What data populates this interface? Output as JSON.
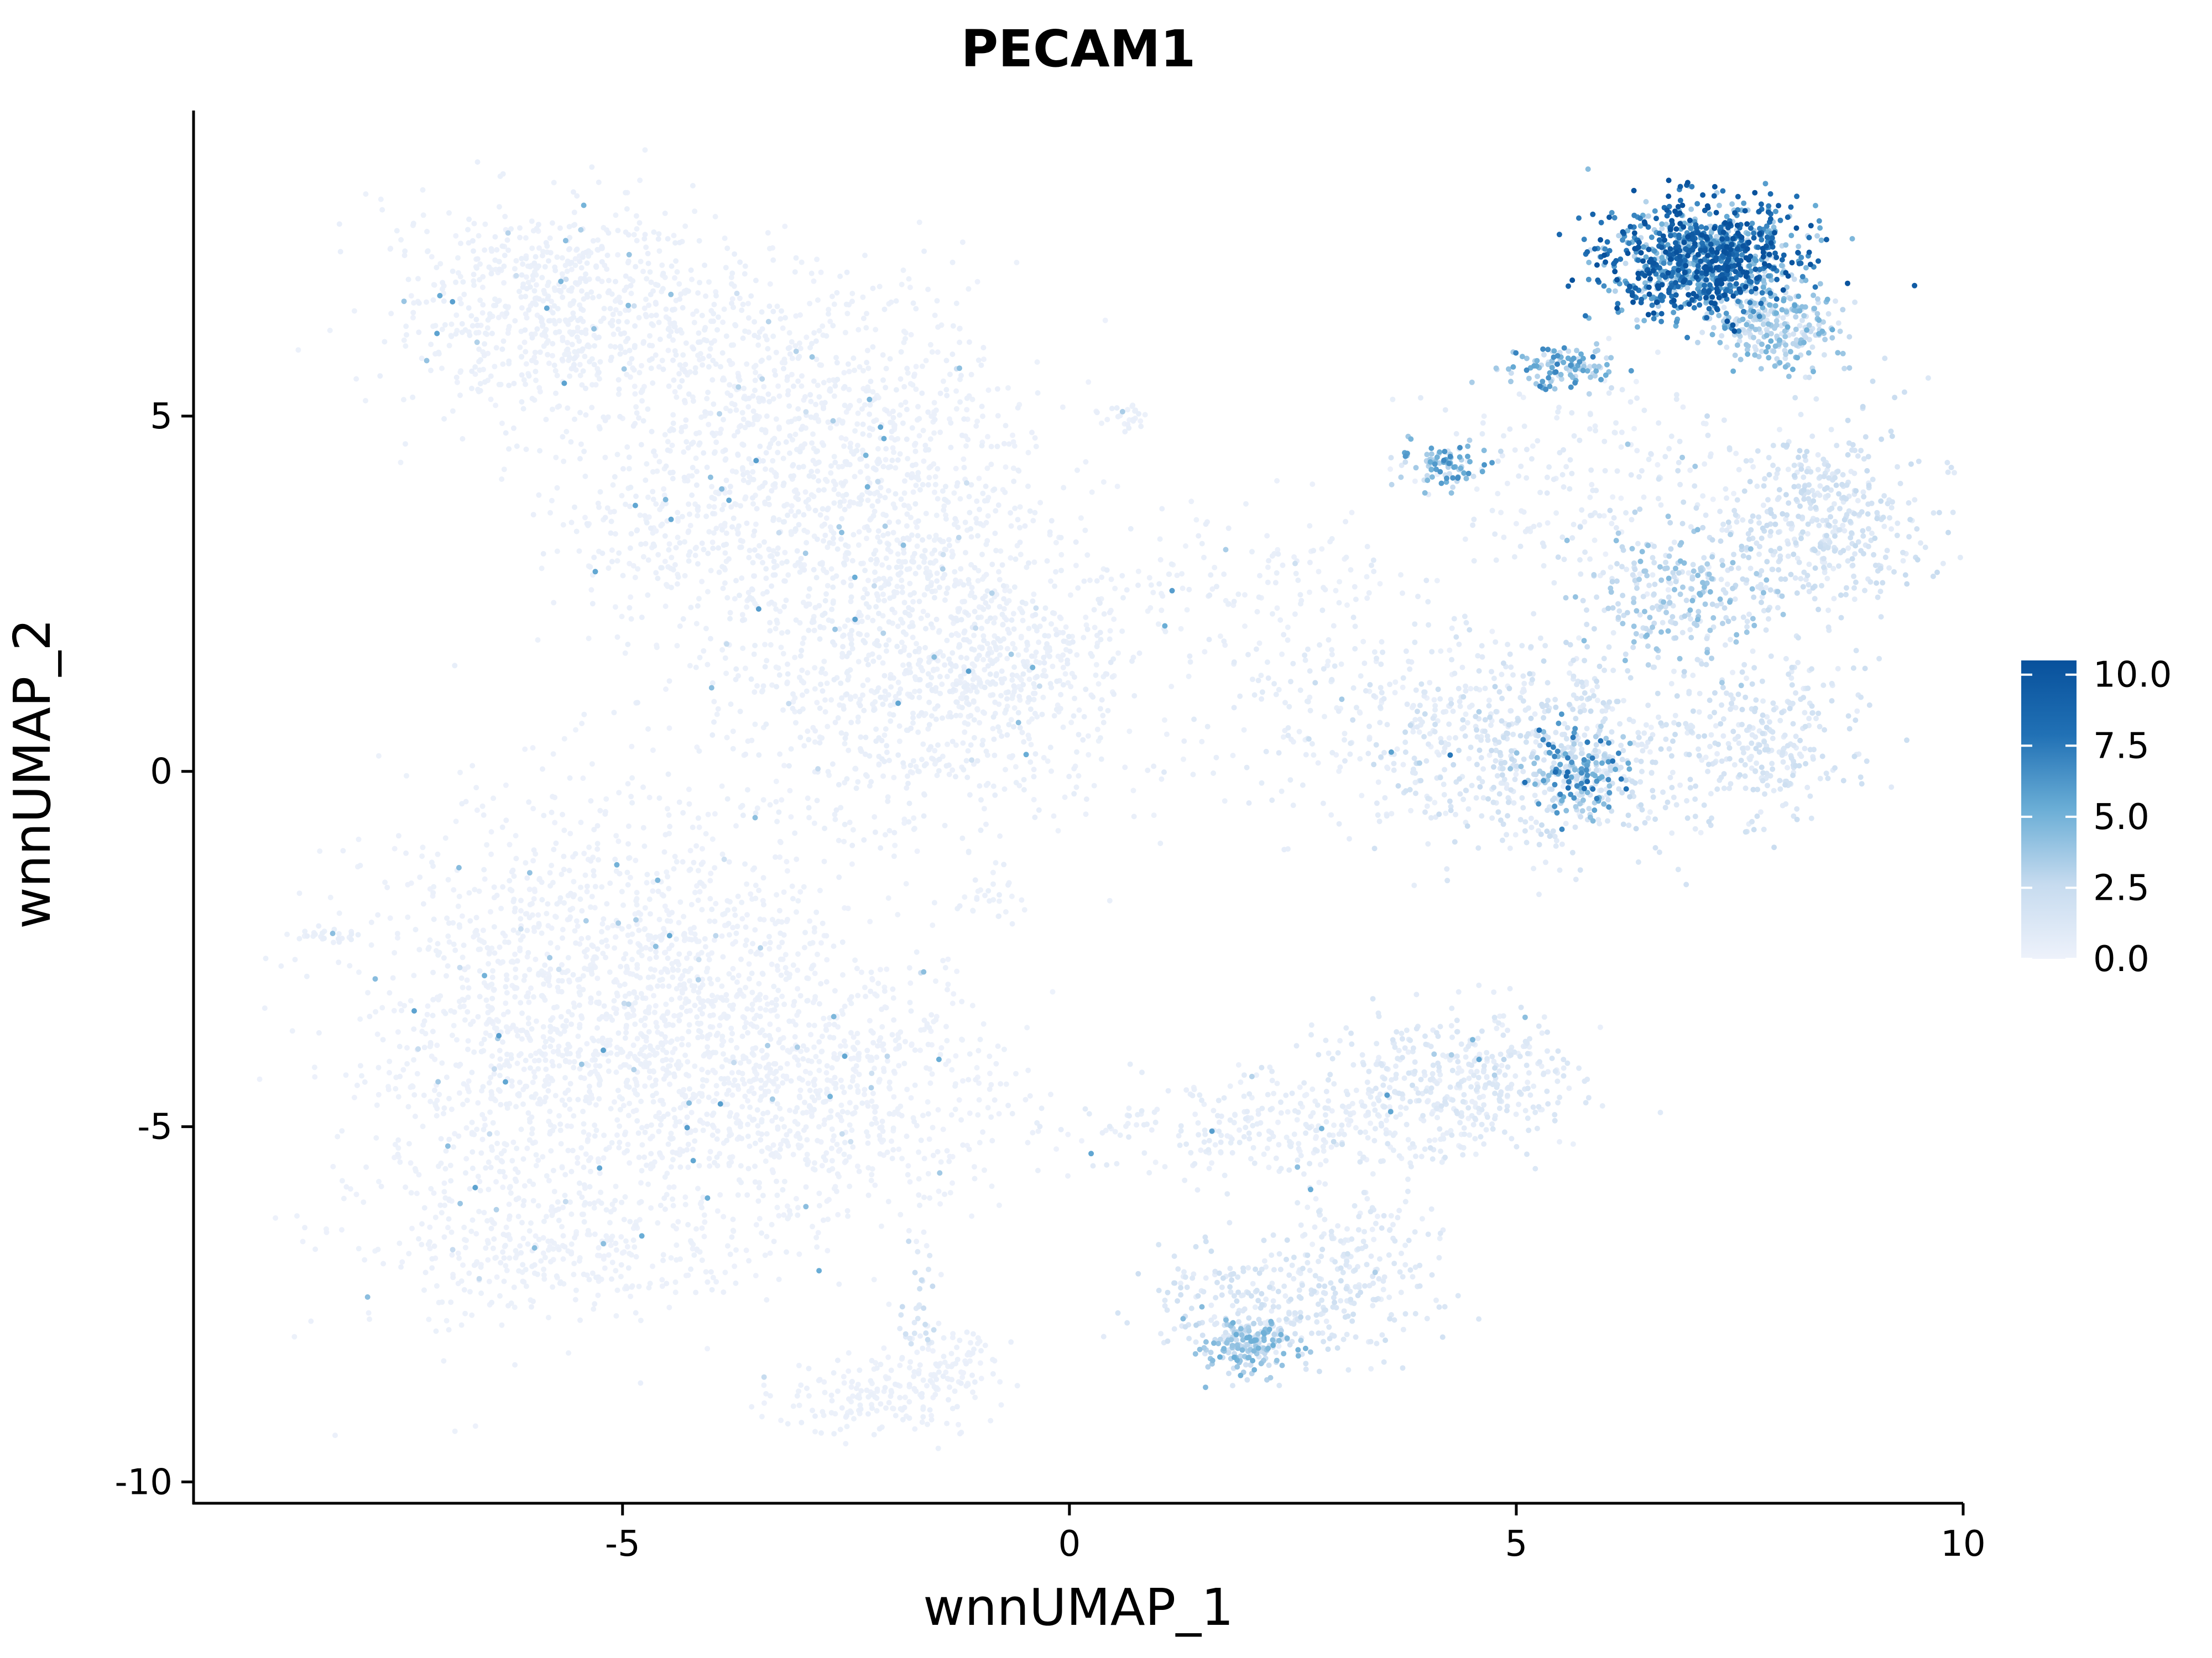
{
  "chart_data": {
    "type": "scatter",
    "title": "PECAM1",
    "xlabel": "wnnUMAP_1",
    "ylabel": "wnnUMAP_2",
    "xlim": [
      -9.8,
      10.0
    ],
    "ylim": [
      -10.3,
      9.3
    ],
    "x_ticks": [
      -5,
      0,
      5,
      10
    ],
    "y_ticks": [
      5,
      0,
      -5,
      -10
    ],
    "x_tick_labels": [
      "-5",
      "0",
      "5",
      "10"
    ],
    "y_tick_labels": [
      "5",
      "0",
      "-5",
      "-10"
    ],
    "grid": false,
    "legend": {
      "placement": "right",
      "type": "colorbar",
      "min": 0.0,
      "max": 10.5,
      "ticks": [
        0.0,
        2.5,
        5.0,
        7.5,
        10.0
      ],
      "tick_labels": [
        "0.0",
        "2.5",
        "5.0",
        "7.5",
        "10.0"
      ],
      "color_low": "#eef2fb",
      "color_high": "#08519c"
    },
    "colors": {
      "low": "#eef2fb",
      "mid": "#6baed6",
      "high": "#08519c"
    },
    "clusters": [
      {
        "cx": -5.8,
        "cy": 6.5,
        "sx": 0.9,
        "sy": 0.75,
        "n": 700,
        "mean": 0.2
      },
      {
        "cx": -3.5,
        "cy": 5.7,
        "sx": 1.2,
        "sy": 0.9,
        "n": 450,
        "mean": 0.2
      },
      {
        "cx": -2.6,
        "cy": 4.5,
        "sx": 1.2,
        "sy": 0.7,
        "n": 450,
        "mean": 0.2
      },
      {
        "cx": -2.2,
        "cy": 2.8,
        "sx": 1.2,
        "sy": 1.0,
        "n": 800,
        "mean": 0.25
      },
      {
        "cx": -1.6,
        "cy": 0.8,
        "sx": 1.1,
        "sy": 0.9,
        "n": 550,
        "mean": 0.3
      },
      {
        "cx": -0.6,
        "cy": 1.5,
        "sx": 0.7,
        "sy": 0.5,
        "n": 220,
        "mean": 0.35
      },
      {
        "cx": -4.7,
        "cy": 3.3,
        "sx": 0.6,
        "sy": 0.5,
        "n": 150,
        "mean": 0.2
      },
      {
        "cx": 0.6,
        "cy": 5.0,
        "sx": 0.15,
        "sy": 0.1,
        "n": 25,
        "mean": 0.3
      },
      {
        "cx": 2.0,
        "cy": 2.8,
        "sx": 0.8,
        "sy": 0.5,
        "n": 120,
        "mean": 0.3
      },
      {
        "cx": 3.8,
        "cy": 0.8,
        "sx": 1.2,
        "sy": 0.8,
        "n": 350,
        "mean": 0.6
      },
      {
        "cx": 5.4,
        "cy": 0.2,
        "sx": 0.9,
        "sy": 0.7,
        "n": 500,
        "mean": 1.5
      },
      {
        "cx": 5.7,
        "cy": 0.0,
        "sx": 0.3,
        "sy": 0.3,
        "n": 160,
        "mean": 5.0
      },
      {
        "cx": 7.8,
        "cy": 0.4,
        "sx": 0.5,
        "sy": 0.6,
        "n": 280,
        "mean": 1.4
      },
      {
        "cx": 8.4,
        "cy": 3.5,
        "sx": 0.6,
        "sy": 0.7,
        "n": 450,
        "mean": 1.6
      },
      {
        "cx": 6.8,
        "cy": 2.5,
        "sx": 0.55,
        "sy": 0.5,
        "n": 250,
        "mean": 2.8
      },
      {
        "cx": 7.1,
        "cy": 7.2,
        "sx": 0.55,
        "sy": 0.4,
        "n": 1000,
        "mean": 7.0
      },
      {
        "cx": 7.9,
        "cy": 6.2,
        "sx": 0.35,
        "sy": 0.3,
        "n": 250,
        "mean": 3.2
      },
      {
        "cx": 5.5,
        "cy": 5.7,
        "sx": 0.3,
        "sy": 0.15,
        "n": 110,
        "mean": 4.5
      },
      {
        "cx": 4.2,
        "cy": 4.3,
        "sx": 0.25,
        "sy": 0.15,
        "n": 90,
        "mean": 4.2
      },
      {
        "cx": 5.8,
        "cy": 4.0,
        "sx": 0.9,
        "sy": 0.8,
        "n": 200,
        "mean": 0.6
      },
      {
        "cx": -5.0,
        "cy": -3.0,
        "sx": 1.3,
        "sy": 1.4,
        "n": 1400,
        "mean": 0.15
      },
      {
        "cx": -3.0,
        "cy": -4.5,
        "sx": 1.2,
        "sy": 1.0,
        "n": 850,
        "mean": 0.15
      },
      {
        "cx": -6.5,
        "cy": -4.8,
        "sx": 0.9,
        "sy": 1.6,
        "n": 450,
        "mean": 0.15
      },
      {
        "cx": -5.5,
        "cy": -6.8,
        "sx": 1.0,
        "sy": 0.4,
        "n": 250,
        "mean": 0.15
      },
      {
        "cx": -2.4,
        "cy": -8.8,
        "sx": 0.5,
        "sy": 0.25,
        "n": 120,
        "mean": 0.2
      },
      {
        "cx": -1.5,
        "cy": -8.5,
        "sx": 0.35,
        "sy": 0.35,
        "n": 130,
        "mean": 0.2
      },
      {
        "cx": -1.7,
        "cy": -7.4,
        "sx": 0.1,
        "sy": 0.4,
        "n": 30,
        "mean": 1.6
      },
      {
        "cx": 2.5,
        "cy": -5.0,
        "sx": 1.2,
        "sy": 0.35,
        "n": 300,
        "mean": 0.5
      },
      {
        "cx": 4.3,
        "cy": -4.3,
        "sx": 0.7,
        "sy": 0.5,
        "n": 400,
        "mean": 0.9
      },
      {
        "cx": 2.3,
        "cy": -7.5,
        "sx": 0.7,
        "sy": 0.4,
        "n": 250,
        "mean": 1.3
      },
      {
        "cx": 2.0,
        "cy": -8.1,
        "sx": 0.25,
        "sy": 0.2,
        "n": 180,
        "mean": 3.2
      },
      {
        "cx": 3.2,
        "cy": -6.8,
        "sx": 0.5,
        "sy": 0.5,
        "n": 150,
        "mean": 0.8
      },
      {
        "cx": -0.9,
        "cy": -1.8,
        "sx": 0.2,
        "sy": 0.2,
        "n": 25,
        "mean": 0.3
      },
      {
        "cx": -8.3,
        "cy": -2.3,
        "sx": 0.2,
        "sy": 0.05,
        "n": 25,
        "mean": 0.3
      }
    ]
  }
}
